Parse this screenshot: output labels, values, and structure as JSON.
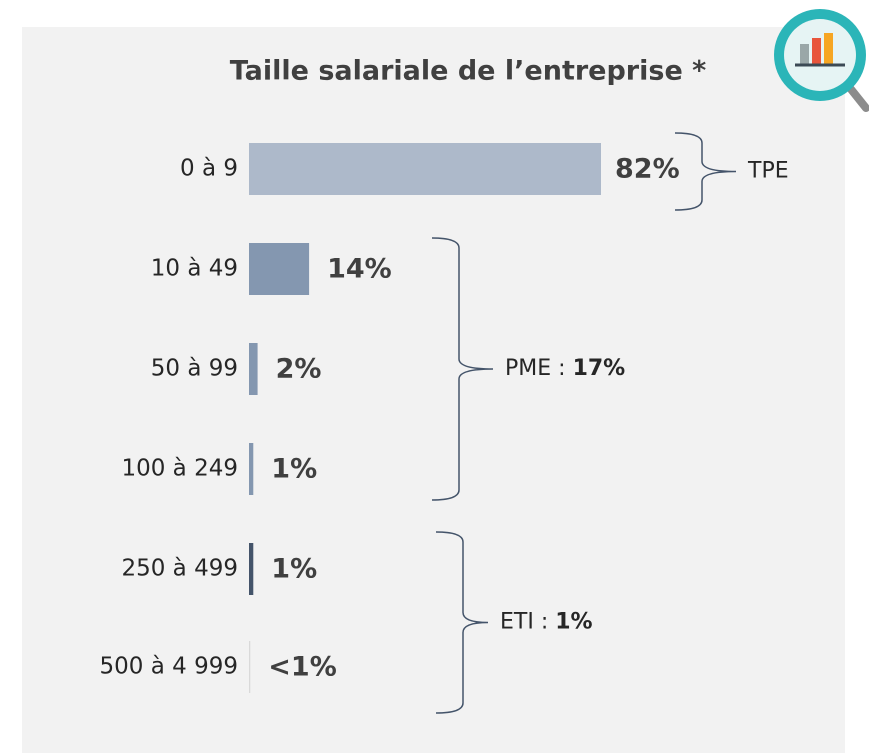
{
  "chart_data": {
    "type": "bar",
    "orientation": "horizontal",
    "title": "Taille salariale de l’entreprise *",
    "categories": [
      "0 à 9",
      "10 à 49",
      "50 à 99",
      "100 à 249",
      "250 à 499",
      "500 à 4 999"
    ],
    "values": [
      82,
      14,
      2,
      1,
      1,
      0.3
    ],
    "value_labels": [
      "82%",
      "14%",
      "2%",
      "1%",
      "1%",
      "<1%"
    ],
    "colors": [
      "#adb9ca",
      "#8497b0",
      "#8497b0",
      "#8497b0",
      "#44546a",
      "#d9d9d9"
    ],
    "groups": [
      {
        "label": "TPE"
      },
      {
        "label": "PME :",
        "value": 17,
        "value_label": "17%"
      },
      {
        "label": "ETI :",
        "value": 1,
        "value_label": "1%"
      }
    ]
  }
}
